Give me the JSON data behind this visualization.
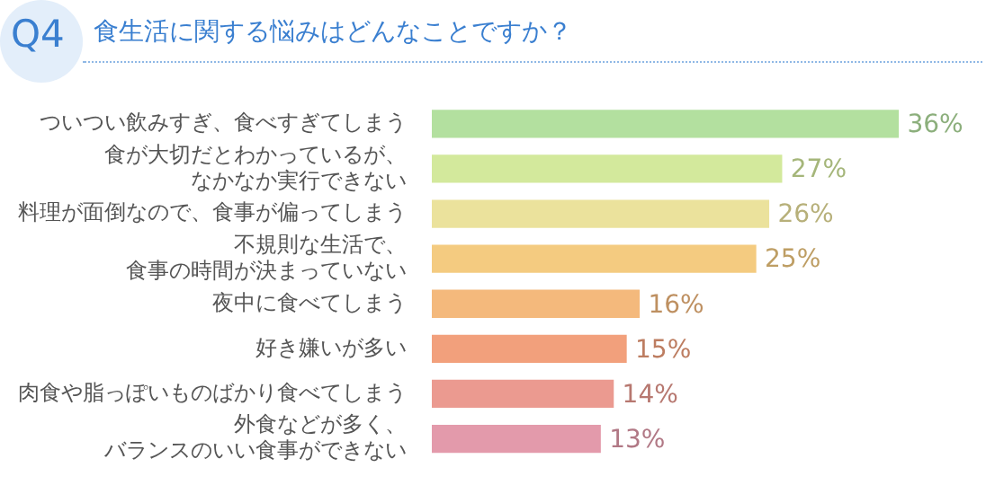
{
  "chart_data": {
    "type": "bar",
    "orientation": "horizontal",
    "title": "食生活に関する悩みはどんなことですか？",
    "annotations": [
      "Q4"
    ],
    "categories": [
      "ついつい飲みすぎ、食べすぎてしまう",
      "食が大切だとわかっているが、なかなか実行できない",
      "料理が面倒なので、食事が偏ってしまう",
      "不規則な生活で、食事の時間が決まっていない",
      "夜中に食べてしまう",
      "好き嫌いが多い",
      "肉食や脂っぽいものばかり食べてしまう",
      "外食などが多く、バランスのいい食事ができない"
    ],
    "values": [
      36,
      27,
      26,
      25,
      16,
      15,
      14,
      13
    ],
    "value_labels": [
      "36%",
      "27%",
      "26%",
      "25%",
      "16%",
      "15%",
      "14%",
      "13%"
    ],
    "colors": [
      "#b3e09f",
      "#d3e99c",
      "#ebe29c",
      "#f4cb80",
      "#f4b97c",
      "#f2a07c",
      "#eb9a90",
      "#e39aab"
    ],
    "tick_labels": "y",
    "grid": false,
    "legend": false
  }
}
